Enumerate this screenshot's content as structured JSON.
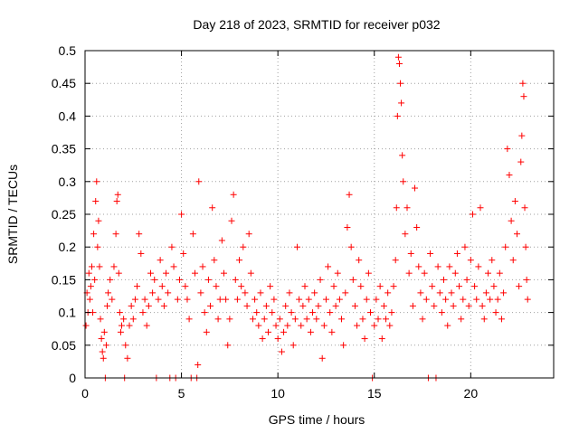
{
  "chart_data": {
    "type": "scatter",
    "title": "Day 218 of 2023, SRMTID for receiver p032",
    "xlabel": "GPS time / hours",
    "ylabel": "SRMTID / TECUs",
    "xlim": [
      0,
      24.3
    ],
    "ylim": [
      0,
      0.5
    ],
    "xticks": [
      0,
      5,
      10,
      15,
      20
    ],
    "xtick_labels": [
      "0",
      "5",
      "10",
      "15",
      "20"
    ],
    "yticks": [
      0,
      0.05,
      0.1,
      0.15,
      0.2,
      0.25,
      0.3,
      0.35,
      0.4,
      0.45,
      0.5
    ],
    "ytick_labels": [
      "0",
      "0.05",
      "0.1",
      "0.15",
      "0.2",
      "0.25",
      "0.3",
      "0.35",
      "0.4",
      "0.45",
      "0.5"
    ],
    "grid": true,
    "marker": "+",
    "color": "#ff0000",
    "series": [
      {
        "name": "SRMTID",
        "points": [
          [
            0.05,
            0.08
          ],
          [
            0.1,
            0.13
          ],
          [
            0.15,
            0.1
          ],
          [
            0.2,
            0.16
          ],
          [
            0.25,
            0.12
          ],
          [
            0.3,
            0.14
          ],
          [
            0.35,
            0.17
          ],
          [
            0.4,
            0.1
          ],
          [
            0.45,
            0.22
          ],
          [
            0.5,
            0.15
          ],
          [
            0.55,
            0.27
          ],
          [
            0.6,
            0.3
          ],
          [
            0.65,
            0.2
          ],
          [
            0.7,
            0.24
          ],
          [
            0.75,
            0.17
          ],
          [
            0.8,
            0.09
          ],
          [
            0.85,
            0.06
          ],
          [
            0.9,
            0.04
          ],
          [
            0.95,
            0.03
          ],
          [
            1.0,
            0.07
          ],
          [
            1.05,
            0.0
          ],
          [
            1.1,
            0.05
          ],
          [
            1.15,
            0.11
          ],
          [
            1.2,
            0.13
          ],
          [
            1.3,
            0.15
          ],
          [
            1.4,
            0.12
          ],
          [
            1.5,
            0.17
          ],
          [
            1.6,
            0.22
          ],
          [
            1.65,
            0.27
          ],
          [
            1.7,
            0.28
          ],
          [
            1.75,
            0.16
          ],
          [
            1.8,
            0.1
          ],
          [
            1.85,
            0.07
          ],
          [
            1.9,
            0.08
          ],
          [
            2.0,
            0.09
          ],
          [
            2.05,
            0.0
          ],
          [
            2.1,
            0.05
          ],
          [
            2.2,
            0.03
          ],
          [
            2.3,
            0.08
          ],
          [
            2.4,
            0.11
          ],
          [
            2.5,
            0.09
          ],
          [
            2.6,
            0.12
          ],
          [
            2.7,
            0.14
          ],
          [
            2.8,
            0.22
          ],
          [
            2.9,
            0.19
          ],
          [
            3.0,
            0.1
          ],
          [
            3.1,
            0.12
          ],
          [
            3.2,
            0.08
          ],
          [
            3.3,
            0.11
          ],
          [
            3.4,
            0.16
          ],
          [
            3.5,
            0.13
          ],
          [
            3.6,
            0.15
          ],
          [
            3.7,
            0.0
          ],
          [
            3.8,
            0.12
          ],
          [
            3.9,
            0.18
          ],
          [
            4.0,
            0.14
          ],
          [
            4.1,
            0.11
          ],
          [
            4.2,
            0.16
          ],
          [
            4.3,
            0.13
          ],
          [
            4.4,
            0.0
          ],
          [
            4.5,
            0.2
          ],
          [
            4.6,
            0.17
          ],
          [
            4.7,
            0.0
          ],
          [
            4.8,
            0.12
          ],
          [
            4.9,
            0.15
          ],
          [
            5.0,
            0.25
          ],
          [
            5.1,
            0.19
          ],
          [
            5.2,
            0.14
          ],
          [
            5.3,
            0.12
          ],
          [
            5.4,
            0.09
          ],
          [
            5.5,
            0.0
          ],
          [
            5.6,
            0.22
          ],
          [
            5.7,
            0.16
          ],
          [
            5.8,
            0.0
          ],
          [
            5.85,
            0.02
          ],
          [
            5.9,
            0.3
          ],
          [
            6.0,
            0.13
          ],
          [
            6.1,
            0.17
          ],
          [
            6.2,
            0.1
          ],
          [
            6.3,
            0.07
          ],
          [
            6.4,
            0.15
          ],
          [
            6.5,
            0.11
          ],
          [
            6.6,
            0.26
          ],
          [
            6.7,
            0.18
          ],
          [
            6.8,
            0.14
          ],
          [
            6.9,
            0.09
          ],
          [
            7.0,
            0.12
          ],
          [
            7.1,
            0.21
          ],
          [
            7.2,
            0.16
          ],
          [
            7.3,
            0.12
          ],
          [
            7.4,
            0.05
          ],
          [
            7.5,
            0.09
          ],
          [
            7.6,
            0.24
          ],
          [
            7.7,
            0.28
          ],
          [
            7.8,
            0.15
          ],
          [
            7.9,
            0.12
          ],
          [
            8.0,
            0.18
          ],
          [
            8.1,
            0.14
          ],
          [
            8.2,
            0.2
          ],
          [
            8.3,
            0.13
          ],
          [
            8.4,
            0.11
          ],
          [
            8.5,
            0.22
          ],
          [
            8.6,
            0.16
          ],
          [
            8.7,
            0.09
          ],
          [
            8.8,
            0.12
          ],
          [
            8.9,
            0.1
          ],
          [
            9.0,
            0.08
          ],
          [
            9.1,
            0.13
          ],
          [
            9.2,
            0.06
          ],
          [
            9.3,
            0.09
          ],
          [
            9.4,
            0.11
          ],
          [
            9.5,
            0.07
          ],
          [
            9.6,
            0.14
          ],
          [
            9.7,
            0.1
          ],
          [
            9.8,
            0.12
          ],
          [
            9.9,
            0.08
          ],
          [
            10.0,
            0.06
          ],
          [
            10.1,
            0.09
          ],
          [
            10.2,
            0.04
          ],
          [
            10.3,
            0.07
          ],
          [
            10.4,
            0.11
          ],
          [
            10.5,
            0.08
          ],
          [
            10.6,
            0.13
          ],
          [
            10.7,
            0.1
          ],
          [
            10.8,
            0.05
          ],
          [
            10.9,
            0.09
          ],
          [
            11.0,
            0.2
          ],
          [
            11.1,
            0.12
          ],
          [
            11.2,
            0.08
          ],
          [
            11.3,
            0.11
          ],
          [
            11.4,
            0.14
          ],
          [
            11.5,
            0.09
          ],
          [
            11.6,
            0.12
          ],
          [
            11.7,
            0.07
          ],
          [
            11.8,
            0.1
          ],
          [
            11.9,
            0.13
          ],
          [
            12.0,
            0.09
          ],
          [
            12.1,
            0.11
          ],
          [
            12.2,
            0.15
          ],
          [
            12.3,
            0.03
          ],
          [
            12.4,
            0.08
          ],
          [
            12.5,
            0.12
          ],
          [
            12.6,
            0.17
          ],
          [
            12.7,
            0.1
          ],
          [
            12.8,
            0.07
          ],
          [
            12.9,
            0.14
          ],
          [
            13.0,
            0.11
          ],
          [
            13.1,
            0.16
          ],
          [
            13.2,
            0.12
          ],
          [
            13.3,
            0.09
          ],
          [
            13.4,
            0.05
          ],
          [
            13.5,
            0.13
          ],
          [
            13.6,
            0.23
          ],
          [
            13.7,
            0.28
          ],
          [
            13.8,
            0.2
          ],
          [
            13.9,
            0.15
          ],
          [
            14.0,
            0.11
          ],
          [
            14.1,
            0.08
          ],
          [
            14.2,
            0.18
          ],
          [
            14.3,
            0.14
          ],
          [
            14.4,
            0.09
          ],
          [
            14.5,
            0.06
          ],
          [
            14.6,
            0.12
          ],
          [
            14.7,
            0.16
          ],
          [
            14.8,
            0.1
          ],
          [
            14.9,
            0.0
          ],
          [
            15.0,
            0.08
          ],
          [
            15.1,
            0.12
          ],
          [
            15.2,
            0.09
          ],
          [
            15.3,
            0.14
          ],
          [
            15.4,
            0.06
          ],
          [
            15.5,
            0.11
          ],
          [
            15.6,
            0.09
          ],
          [
            15.7,
            0.13
          ],
          [
            15.8,
            0.08
          ],
          [
            15.9,
            0.1
          ],
          [
            16.0,
            0.14
          ],
          [
            16.1,
            0.18
          ],
          [
            16.15,
            0.26
          ],
          [
            16.2,
            0.4
          ],
          [
            16.25,
            0.49
          ],
          [
            16.3,
            0.48
          ],
          [
            16.35,
            0.45
          ],
          [
            16.4,
            0.42
          ],
          [
            16.45,
            0.34
          ],
          [
            16.5,
            0.3
          ],
          [
            16.6,
            0.22
          ],
          [
            16.7,
            0.26
          ],
          [
            16.8,
            0.16
          ],
          [
            16.9,
            0.19
          ],
          [
            17.0,
            0.11
          ],
          [
            17.1,
            0.29
          ],
          [
            17.2,
            0.23
          ],
          [
            17.3,
            0.17
          ],
          [
            17.4,
            0.13
          ],
          [
            17.5,
            0.09
          ],
          [
            17.6,
            0.16
          ],
          [
            17.7,
            0.12
          ],
          [
            17.8,
            0.0
          ],
          [
            17.9,
            0.19
          ],
          [
            18.0,
            0.14
          ],
          [
            18.1,
            0.11
          ],
          [
            18.2,
            0.0
          ],
          [
            18.3,
            0.17
          ],
          [
            18.4,
            0.13
          ],
          [
            18.5,
            0.1
          ],
          [
            18.6,
            0.15
          ],
          [
            18.7,
            0.12
          ],
          [
            18.8,
            0.08
          ],
          [
            18.9,
            0.17
          ],
          [
            19.0,
            0.13
          ],
          [
            19.1,
            0.11
          ],
          [
            19.2,
            0.16
          ],
          [
            19.3,
            0.19
          ],
          [
            19.4,
            0.14
          ],
          [
            19.5,
            0.09
          ],
          [
            19.6,
            0.12
          ],
          [
            19.7,
            0.2
          ],
          [
            19.8,
            0.15
          ],
          [
            19.9,
            0.11
          ],
          [
            20.0,
            0.18
          ],
          [
            20.1,
            0.25
          ],
          [
            20.2,
            0.14
          ],
          [
            20.3,
            0.12
          ],
          [
            20.4,
            0.17
          ],
          [
            20.5,
            0.26
          ],
          [
            20.6,
            0.11
          ],
          [
            20.7,
            0.09
          ],
          [
            20.8,
            0.13
          ],
          [
            20.9,
            0.16
          ],
          [
            21.0,
            0.12
          ],
          [
            21.1,
            0.18
          ],
          [
            21.2,
            0.14
          ],
          [
            21.3,
            0.1
          ],
          [
            21.4,
            0.12
          ],
          [
            21.5,
            0.16
          ],
          [
            21.6,
            0.09
          ],
          [
            21.7,
            0.13
          ],
          [
            21.8,
            0.2
          ],
          [
            21.9,
            0.35
          ],
          [
            22.0,
            0.31
          ],
          [
            22.1,
            0.24
          ],
          [
            22.2,
            0.18
          ],
          [
            22.3,
            0.27
          ],
          [
            22.4,
            0.22
          ],
          [
            22.5,
            0.14
          ],
          [
            22.6,
            0.33
          ],
          [
            22.65,
            0.37
          ],
          [
            22.7,
            0.45
          ],
          [
            22.75,
            0.43
          ],
          [
            22.8,
            0.26
          ],
          [
            22.85,
            0.2
          ],
          [
            22.9,
            0.15
          ],
          [
            22.95,
            0.12
          ]
        ]
      }
    ]
  }
}
